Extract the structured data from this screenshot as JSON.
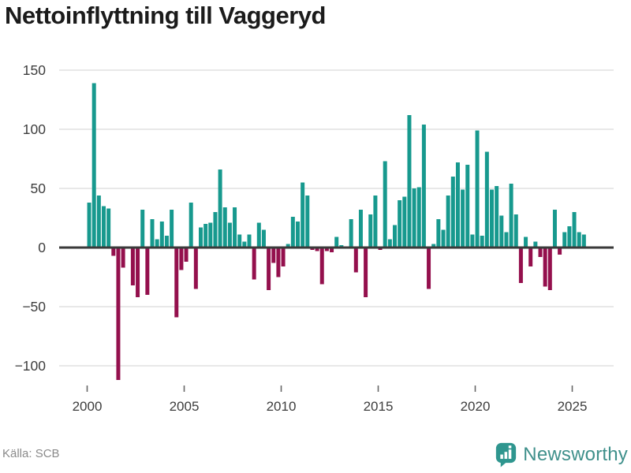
{
  "title": "Nettoinflyttning till Vaggeryd",
  "source": {
    "label": "Källa: SCB"
  },
  "branding": {
    "wordmark": "Newsworthy",
    "icon": "newsworthy-speech-bubble-bar-chart"
  },
  "colors": {
    "positive_bar": "#17998e",
    "negative_bar": "#94104d",
    "gridline": "#e1e1e1",
    "zero_line": "#3a3a3a",
    "axis_text": "#3d3d3d",
    "tick_mark": "#666666",
    "title_text": "#1b1b1b",
    "source_text": "#8a8a8a",
    "brand_bubble": "#2f968f",
    "brand_wordmark": "#3f908b"
  },
  "chart_data": {
    "type": "bar",
    "title": "Nettoinflyttning till Vaggeryd",
    "frequency": "quarterly",
    "start": "2000-Q1",
    "end": "2025-Q3",
    "ylabel": "",
    "xlabel": "",
    "ylim": [
      -120,
      158
    ],
    "grid": "horizontal",
    "legend": "none",
    "values": [
      38,
      139,
      44,
      35,
      33,
      -7,
      -112,
      -17,
      1,
      -32,
      -42,
      32,
      -40,
      24,
      7,
      22,
      10,
      32,
      -59,
      -19,
      -12,
      38,
      -35,
      17,
      20,
      21,
      30,
      66,
      34,
      21,
      34,
      11,
      5,
      11,
      -27,
      21,
      15,
      -36,
      -13,
      -25,
      -16,
      3,
      26,
      22,
      55,
      44,
      -2,
      -3,
      -31,
      -3,
      -4,
      9,
      2,
      0,
      24,
      -21,
      32,
      -42,
      28,
      44,
      -2,
      73,
      7,
      19,
      40,
      43,
      112,
      50,
      51,
      104,
      -35,
      3,
      24,
      15,
      44,
      60,
      72,
      49,
      70,
      11,
      99,
      10,
      81,
      49,
      52,
      27,
      13,
      54,
      28,
      -30,
      9,
      -16,
      5,
      -8,
      -33,
      -36,
      32,
      -6,
      13,
      18,
      30,
      13,
      11
    ],
    "y_ticks": [
      {
        "value": 150,
        "label": "150"
      },
      {
        "value": 100,
        "label": "100"
      },
      {
        "value": 50,
        "label": "50"
      },
      {
        "value": 0,
        "label": "0"
      },
      {
        "value": -50,
        "label": "−50"
      },
      {
        "value": -100,
        "label": "−100"
      }
    ],
    "x_ticks": [
      {
        "value": 2000,
        "label": "2000"
      },
      {
        "value": 2005,
        "label": "2005"
      },
      {
        "value": 2010,
        "label": "2010"
      },
      {
        "value": 2015,
        "label": "2015"
      },
      {
        "value": 2020,
        "label": "2020"
      },
      {
        "value": 2025,
        "label": "2025"
      }
    ]
  }
}
